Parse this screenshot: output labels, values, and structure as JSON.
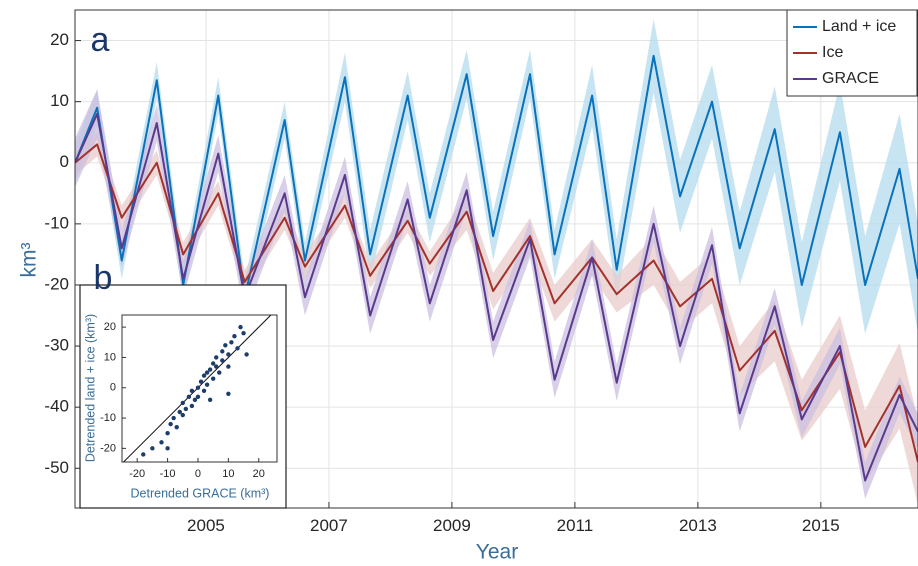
{
  "chart_data": [
    {
      "type": "line",
      "panel_label": "a",
      "x_label": "Year",
      "y_label": "km³",
      "x": [
        2002.87,
        2003.23,
        2003.63,
        2004.2,
        2004.63,
        2005.2,
        2005.63,
        2006.28,
        2006.61,
        2007.26,
        2007.67,
        2008.28,
        2008.64,
        2009.24,
        2009.67,
        2010.27,
        2010.67,
        2011.28,
        2011.68,
        2012.28,
        2012.71,
        2013.23,
        2013.68,
        2014.25,
        2014.69,
        2015.31,
        2015.72,
        2016.28,
        2016.58
      ],
      "series": [
        {
          "name": "Land + ice",
          "color": "#0a72ba",
          "band_color": "#b4dbee",
          "values": [
            0,
            9,
            -16,
            13.5,
            -20,
            11,
            -22,
            7,
            -16,
            14,
            -15,
            11,
            -9,
            14.5,
            -12,
            14.5,
            -15,
            11,
            -17.5,
            17.5,
            -5.5,
            10,
            -14,
            5.5,
            -20,
            5,
            -20,
            -1,
            -19
          ],
          "errors": [
            3,
            3,
            3,
            3,
            3,
            3,
            3,
            3,
            3,
            4,
            4,
            4,
            4,
            4,
            4,
            4,
            4,
            5,
            5,
            6,
            6,
            6,
            6,
            7,
            7,
            8,
            8,
            9,
            9
          ]
        },
        {
          "name": "Ice",
          "color": "#a3322c",
          "band_color": "#e8cccb",
          "values": [
            0,
            3,
            -9,
            0,
            -15,
            -5,
            -19.5,
            -9,
            -17,
            -7,
            -18.5,
            -9.5,
            -16.5,
            -8,
            -21,
            -12,
            -23,
            -15.5,
            -21.5,
            -16,
            -23.5,
            -19,
            -34,
            -27.5,
            -40.5,
            -31,
            -46.5,
            -36.5,
            -49
          ],
          "errors": [
            2,
            2,
            2,
            2,
            2,
            2,
            2,
            2,
            2,
            2,
            2,
            2,
            2,
            3,
            3,
            3,
            3,
            3,
            3,
            4,
            4,
            4,
            4,
            5,
            5,
            6,
            6,
            7,
            7
          ]
        },
        {
          "name": "GRACE",
          "color": "#5a3a8c",
          "band_color": "#cbbfe0",
          "values": [
            0,
            8,
            -14,
            6.5,
            -19,
            1.5,
            -22,
            -5,
            -22,
            -2,
            -25,
            -6,
            -23,
            -4.5,
            -29,
            -12.5,
            -35.5,
            -15.5,
            -36,
            -10,
            -30,
            -13.5,
            -41,
            -23.5,
            -42,
            -30,
            -52,
            -38,
            -44
          ],
          "errors": [
            4,
            4,
            3,
            3,
            3,
            3,
            3,
            3,
            3,
            3,
            3,
            3,
            3,
            3,
            3,
            3,
            3,
            3,
            3,
            3,
            3,
            3,
            3,
            3,
            3,
            3,
            3,
            3,
            3
          ]
        }
      ],
      "xlim": [
        2002.87,
        2016.58
      ],
      "xticks": [
        2005,
        2007,
        2009,
        2011,
        2013,
        2015
      ],
      "ylim": [
        -56.5,
        25
      ],
      "yticks": [
        -50,
        -40,
        -30,
        -20,
        -10,
        0,
        10,
        20
      ],
      "grid": true,
      "legend": "upper right"
    },
    {
      "type": "scatter",
      "panel_label": "b",
      "x_label": "Detrended GRACE (km³)",
      "y_label": "Detrended land + ice (km³)",
      "color": "#1d3d6b",
      "x": [
        -18,
        -15,
        -12,
        -10,
        -9,
        -8,
        -7,
        -6,
        -5,
        -5,
        -4,
        -3,
        -2,
        -2,
        -1,
        0,
        0,
        1,
        2,
        2,
        3,
        3,
        4,
        5,
        5,
        6,
        6,
        7,
        8,
        8,
        9,
        10,
        10,
        11,
        12,
        13,
        14,
        15,
        16,
        10,
        -10,
        4
      ],
      "values": [
        -22,
        -20,
        -18,
        -15,
        -12,
        -10,
        -13,
        -8,
        -9,
        -5,
        -7,
        -3,
        -6,
        -1,
        -4,
        0,
        -3,
        2,
        -1,
        4,
        5,
        1,
        6,
        3,
        8,
        7,
        10,
        5,
        12,
        9,
        14,
        7,
        11,
        15,
        17,
        13,
        20,
        18,
        11,
        -2,
        -20,
        -4
      ],
      "xlim": [
        -25,
        26
      ],
      "xticks": [
        -20,
        -10,
        0,
        10,
        20
      ],
      "ylim": [
        -24.5,
        24
      ],
      "yticks": [
        -20,
        -10,
        0,
        10,
        20
      ],
      "grid": false
    }
  ]
}
